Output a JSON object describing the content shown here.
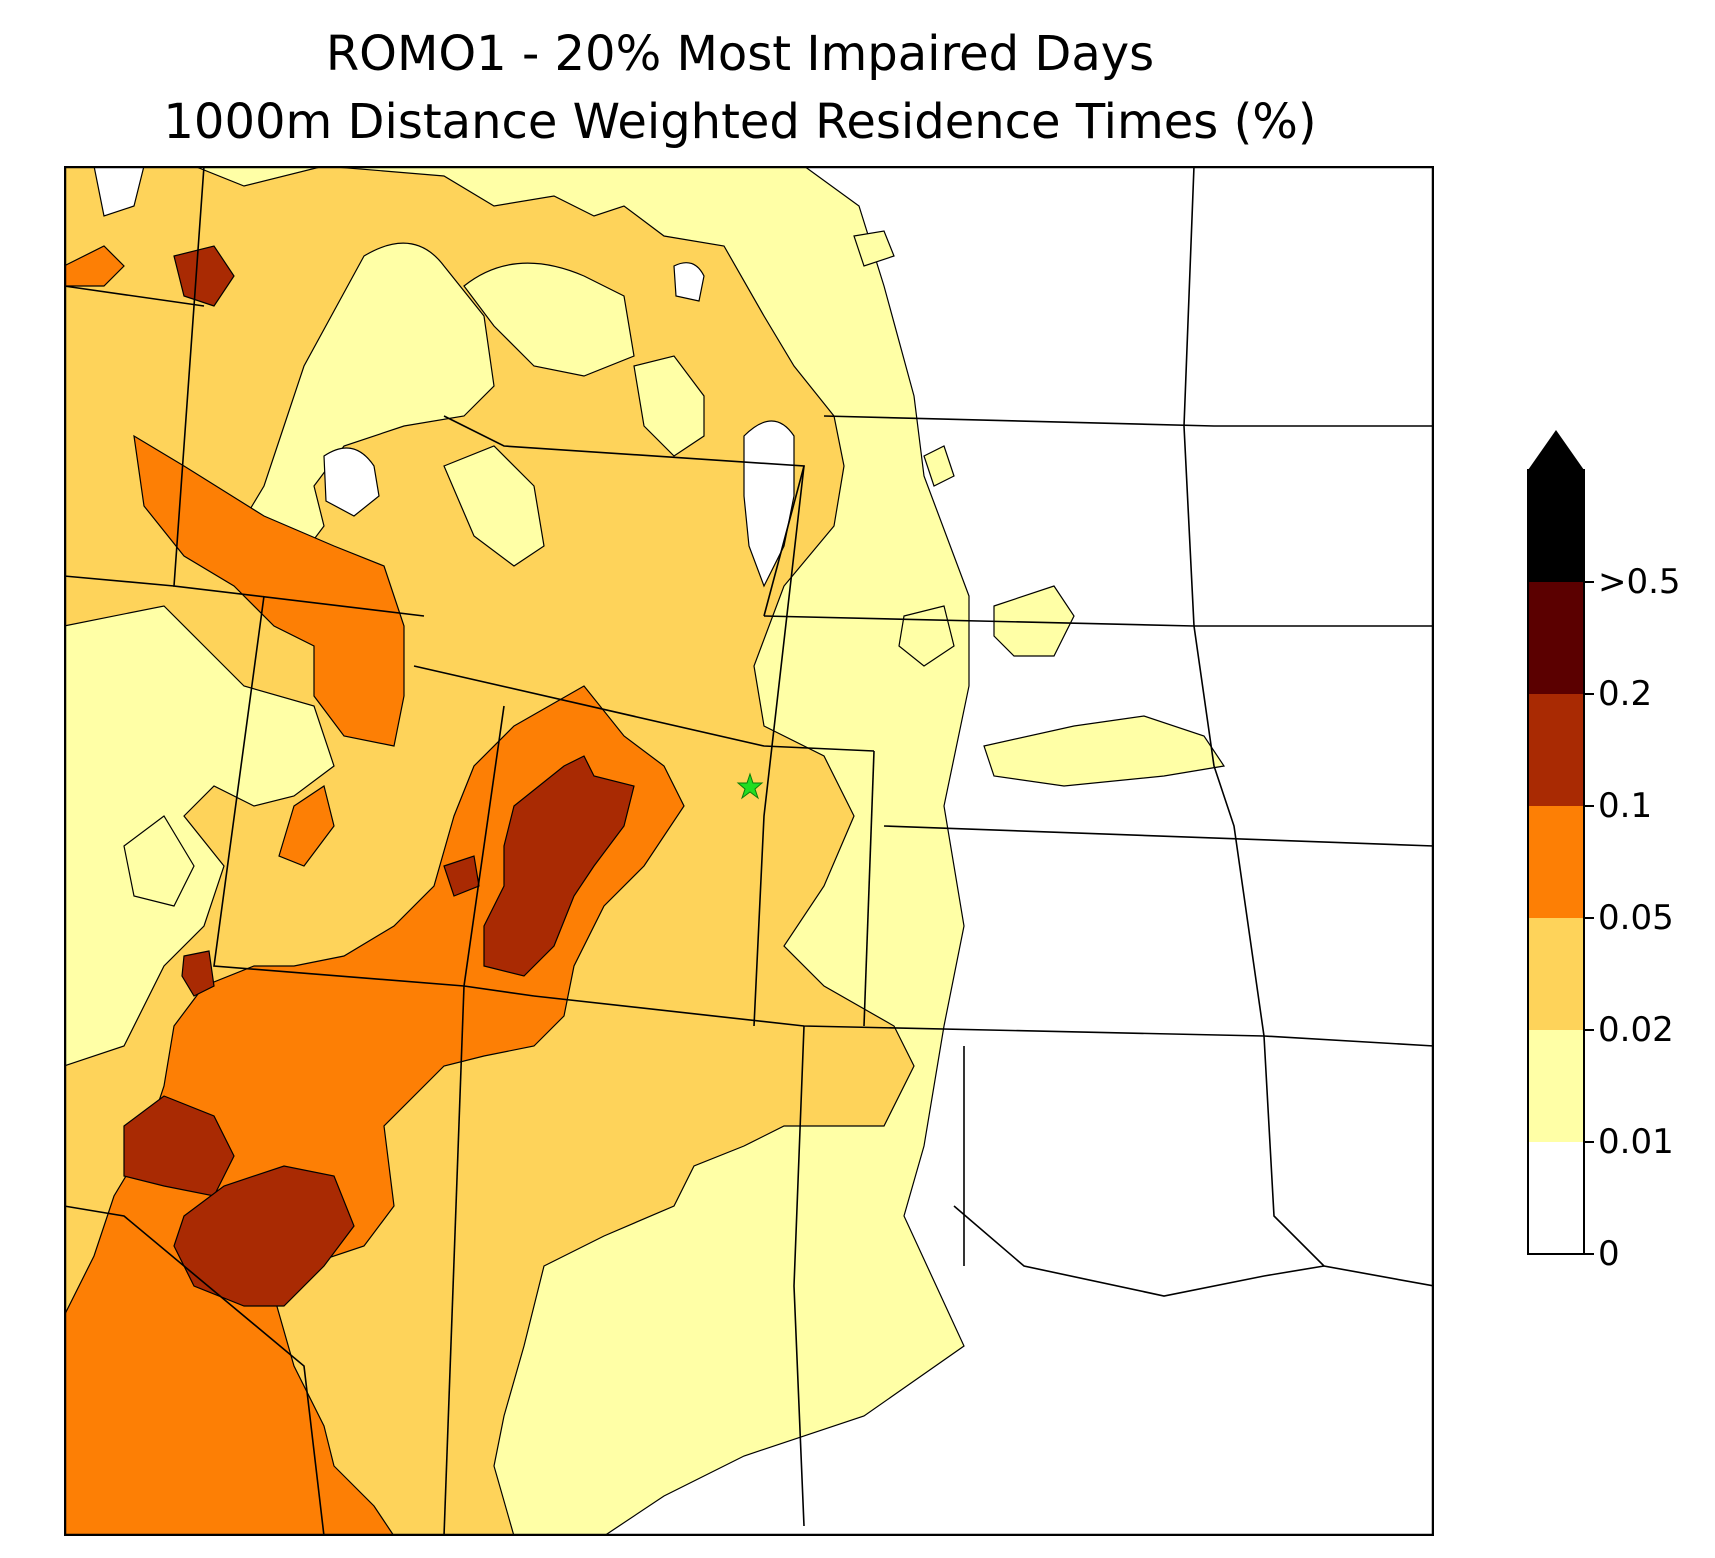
{
  "title_line1": "ROMO1 - 20% Most Impaired Days",
  "title_line2": "1000m Distance Weighted Residence Times (%)",
  "colorbar": {
    "ticks": [
      "0",
      "0.01",
      "0.02",
      "0.05",
      "0.1",
      "0.2",
      ">0.5"
    ],
    "levels": [
      {
        "range": "0–0.01",
        "color": "#ffffff"
      },
      {
        "range": "0.01–0.02",
        "color": "#ffffa6"
      },
      {
        "range": "0.02–0.05",
        "color": "#fed35a"
      },
      {
        "range": "0.05–0.1",
        "color": "#fd7f05"
      },
      {
        "range": "0.1–0.2",
        "color": "#a92a03"
      },
      {
        "range": "0.2–0.5",
        "color": "#5b0000"
      },
      {
        "range": ">0.5",
        "color": "#000000"
      }
    ]
  },
  "receptor_marker": {
    "label": "ROMO1",
    "symbol": "star",
    "color": "#22dd22"
  }
}
